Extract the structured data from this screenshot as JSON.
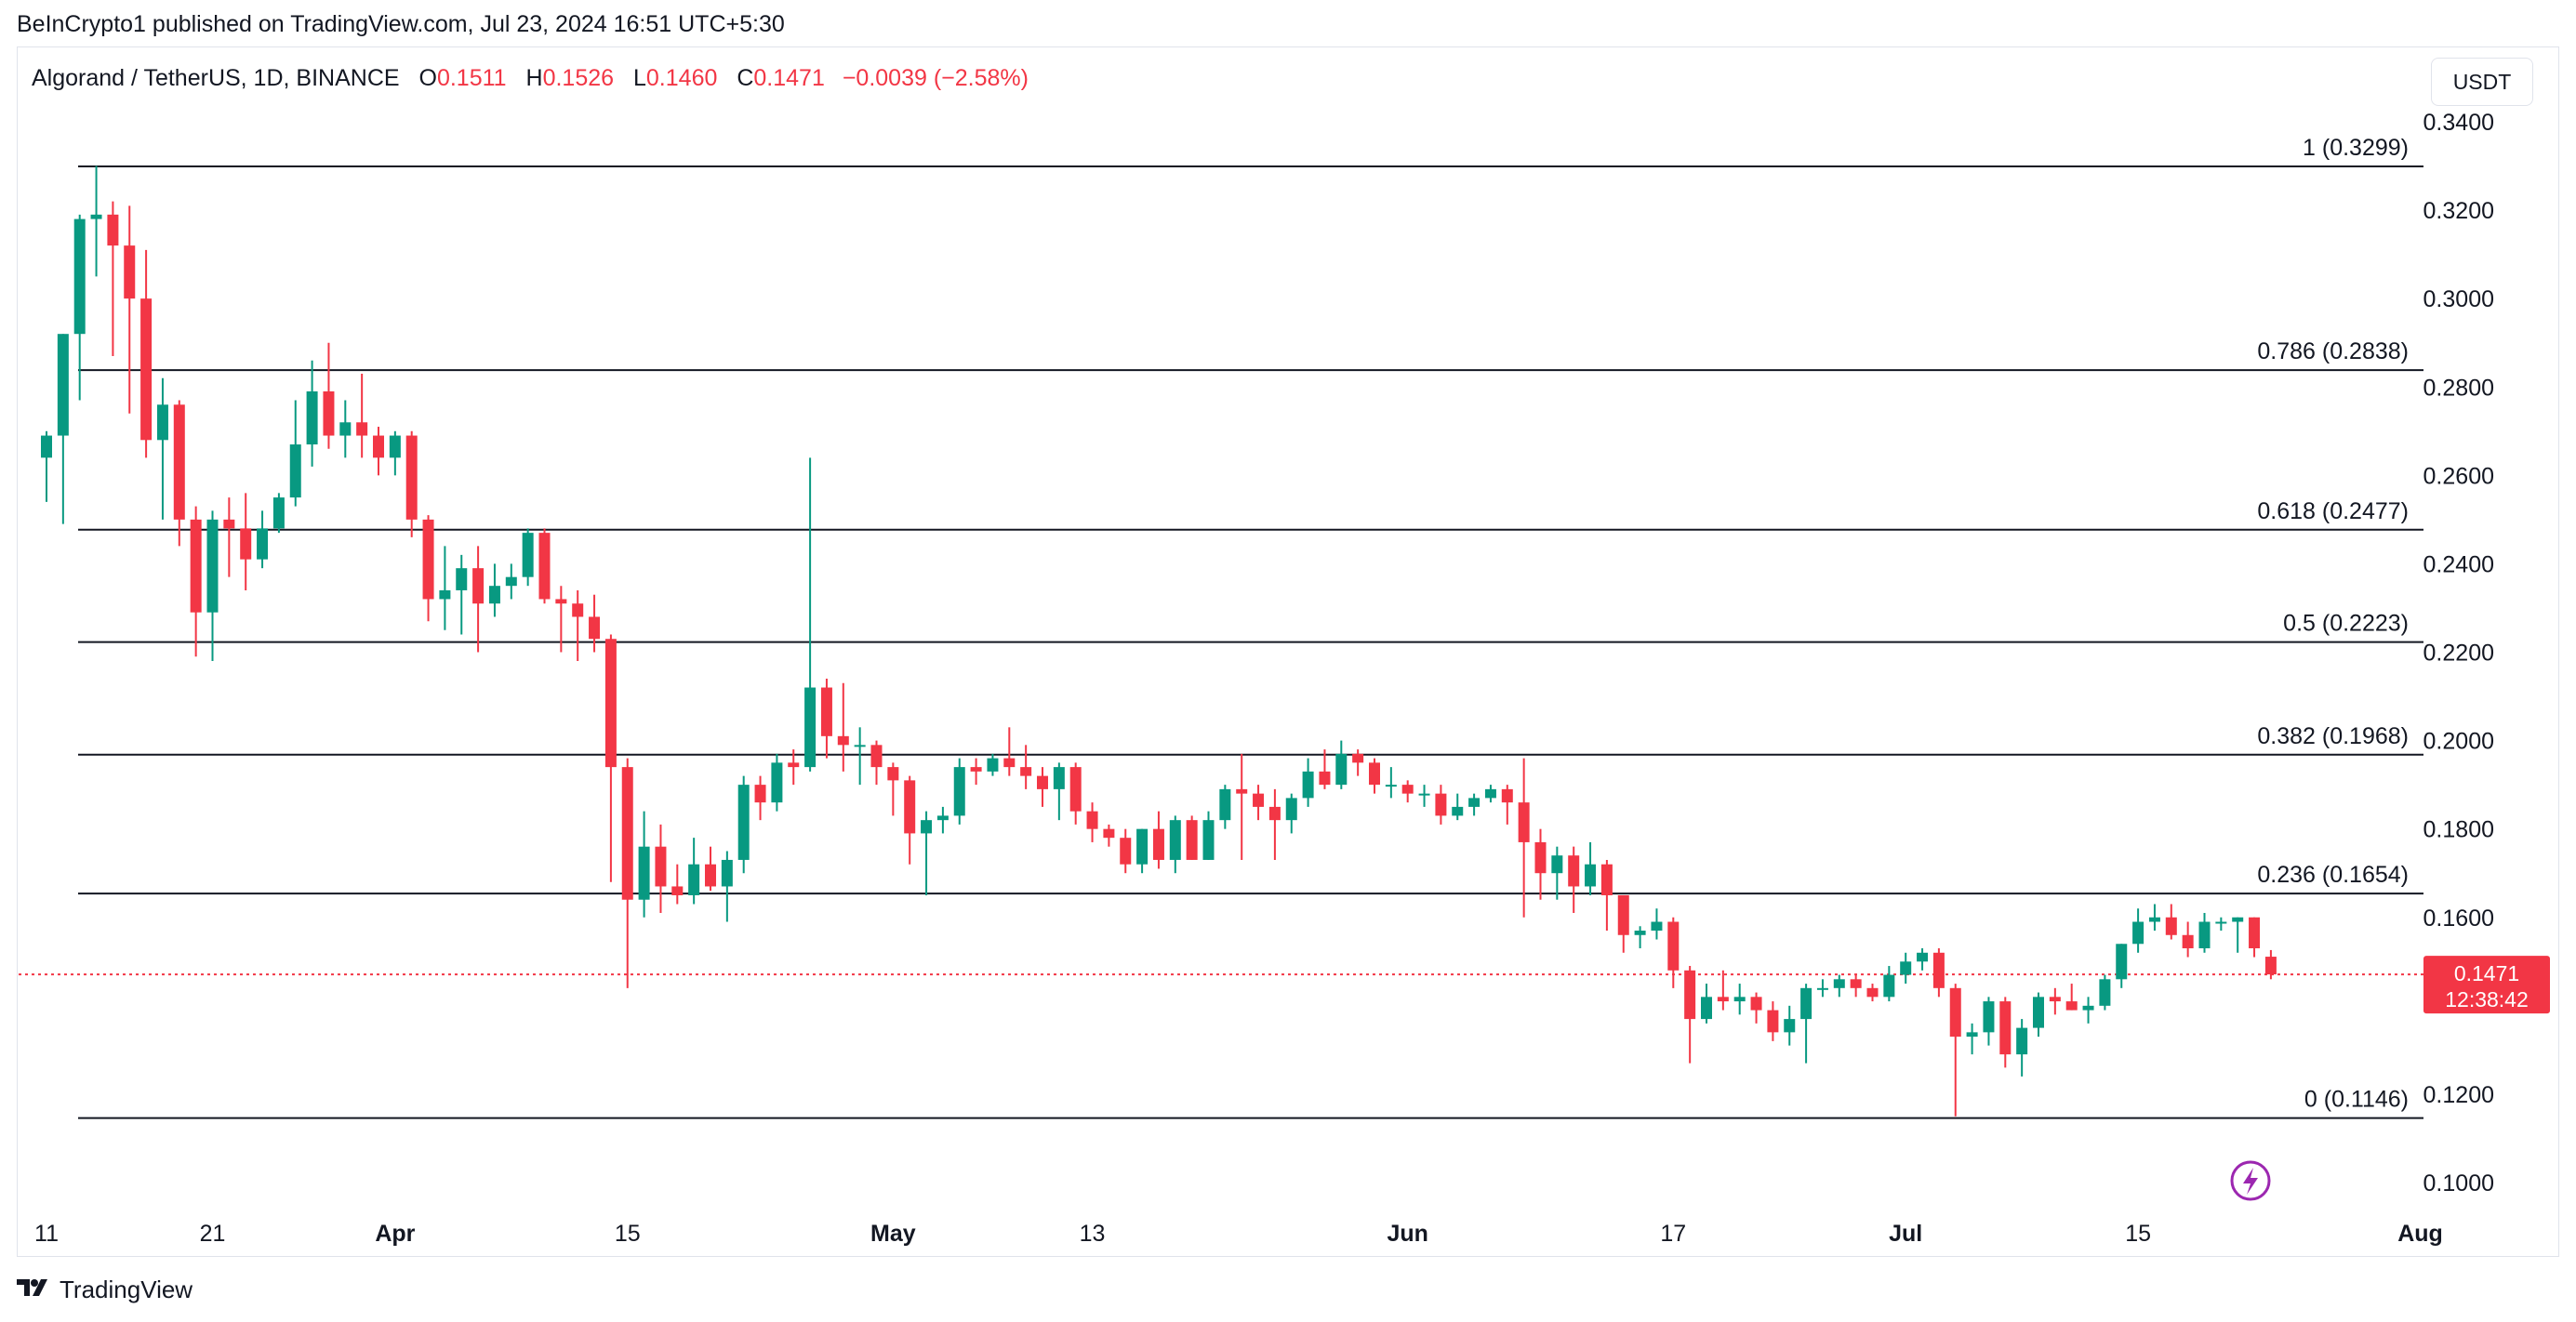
{
  "header": {
    "publisher_line": "BeInCrypto1 published on TradingView.com, Jul 23, 2024 16:51 UTC+5:30"
  },
  "legend": {
    "symbol": "Algorand / TetherUS, 1D, BINANCE",
    "o_label": "O",
    "o_value": "0.1511",
    "h_label": "H",
    "h_value": "0.1526",
    "l_label": "L",
    "l_value": "0.1460",
    "c_label": "C",
    "c_value": "0.1471",
    "change": "−0.0039 (−2.58%)"
  },
  "currency_button": {
    "label": "USDT"
  },
  "price_tag": {
    "value": "0.1471",
    "countdown": "12:38:42"
  },
  "footer": {
    "brand": "TradingView",
    "logo_icon": "tradingview-logo-icon"
  },
  "colors": {
    "up": "#089981",
    "down": "#f23645",
    "fib_line": "#131722",
    "accent": "#9c27b0"
  },
  "icons": {
    "lightning": "lightning-icon"
  },
  "chart_data": {
    "type": "candlestick",
    "title": "Algorand / TetherUS, 1D, BINANCE",
    "ylabel": "USDT",
    "ylim": [
      0.09,
      0.345
    ],
    "y_ticks": [
      "0.3400",
      "0.3200",
      "0.3000",
      "0.2800",
      "0.2600",
      "0.2400",
      "0.2200",
      "0.2000",
      "0.1800",
      "0.1600",
      "0.1200",
      "0.1000"
    ],
    "x_ticks": [
      {
        "label": "11",
        "day": 0,
        "bold": false
      },
      {
        "label": "21",
        "day": 10,
        "bold": false
      },
      {
        "label": "Apr",
        "day": 21,
        "bold": true
      },
      {
        "label": "15",
        "day": 35,
        "bold": false
      },
      {
        "label": "May",
        "day": 51,
        "bold": true
      },
      {
        "label": "13",
        "day": 63,
        "bold": false
      },
      {
        "label": "Jun",
        "day": 82,
        "bold": true
      },
      {
        "label": "17",
        "day": 98,
        "bold": false
      },
      {
        "label": "Jul",
        "day": 112,
        "bold": true
      },
      {
        "label": "15",
        "day": 126,
        "bold": false
      },
      {
        "label": "Aug",
        "day": 143,
        "bold": true
      }
    ],
    "fib_levels": [
      {
        "label": "1 (0.3299)",
        "value": 0.3299
      },
      {
        "label": "0.786 (0.2838)",
        "value": 0.2838
      },
      {
        "label": "0.618 (0.2477)",
        "value": 0.2477
      },
      {
        "label": "0.5 (0.2223)",
        "value": 0.2223
      },
      {
        "label": "0.382 (0.1968)",
        "value": 0.1968
      },
      {
        "label": "0.236 (0.1654)",
        "value": 0.1654
      },
      {
        "label": "0 (0.1146)",
        "value": 0.1146
      }
    ],
    "last_price": 0.1471,
    "candles": [
      [
        0.264,
        0.27,
        0.254,
        0.269
      ],
      [
        0.269,
        0.292,
        0.249,
        0.292
      ],
      [
        0.292,
        0.319,
        0.277,
        0.318
      ],
      [
        0.318,
        0.33,
        0.305,
        0.319
      ],
      [
        0.319,
        0.322,
        0.287,
        0.312
      ],
      [
        0.312,
        0.321,
        0.274,
        0.3
      ],
      [
        0.3,
        0.311,
        0.264,
        0.268
      ],
      [
        0.268,
        0.282,
        0.25,
        0.276
      ],
      [
        0.276,
        0.277,
        0.244,
        0.25
      ],
      [
        0.25,
        0.253,
        0.219,
        0.229
      ],
      [
        0.229,
        0.252,
        0.218,
        0.25
      ],
      [
        0.25,
        0.255,
        0.237,
        0.248
      ],
      [
        0.248,
        0.256,
        0.234,
        0.241
      ],
      [
        0.241,
        0.252,
        0.239,
        0.248
      ],
      [
        0.248,
        0.256,
        0.247,
        0.255
      ],
      [
        0.255,
        0.277,
        0.253,
        0.267
      ],
      [
        0.267,
        0.286,
        0.262,
        0.279
      ],
      [
        0.279,
        0.29,
        0.266,
        0.269
      ],
      [
        0.269,
        0.277,
        0.264,
        0.272
      ],
      [
        0.272,
        0.283,
        0.264,
        0.269
      ],
      [
        0.269,
        0.271,
        0.26,
        0.264
      ],
      [
        0.264,
        0.27,
        0.26,
        0.269
      ],
      [
        0.269,
        0.27,
        0.246,
        0.25
      ],
      [
        0.25,
        0.251,
        0.227,
        0.232
      ],
      [
        0.232,
        0.244,
        0.225,
        0.234
      ],
      [
        0.234,
        0.242,
        0.224,
        0.239
      ],
      [
        0.239,
        0.244,
        0.22,
        0.231
      ],
      [
        0.231,
        0.24,
        0.228,
        0.235
      ],
      [
        0.235,
        0.24,
        0.232,
        0.237
      ],
      [
        0.237,
        0.248,
        0.235,
        0.247
      ],
      [
        0.247,
        0.248,
        0.231,
        0.232
      ],
      [
        0.232,
        0.235,
        0.22,
        0.231
      ],
      [
        0.231,
        0.234,
        0.218,
        0.228
      ],
      [
        0.228,
        0.233,
        0.22,
        0.223
      ],
      [
        0.223,
        0.224,
        0.168,
        0.194
      ],
      [
        0.194,
        0.196,
        0.144,
        0.164
      ],
      [
        0.164,
        0.184,
        0.16,
        0.176
      ],
      [
        0.176,
        0.181,
        0.161,
        0.167
      ],
      [
        0.167,
        0.172,
        0.163,
        0.165
      ],
      [
        0.165,
        0.178,
        0.163,
        0.172
      ],
      [
        0.172,
        0.176,
        0.166,
        0.167
      ],
      [
        0.167,
        0.175,
        0.159,
        0.173
      ],
      [
        0.173,
        0.192,
        0.17,
        0.19
      ],
      [
        0.19,
        0.192,
        0.182,
        0.186
      ],
      [
        0.186,
        0.197,
        0.184,
        0.195
      ],
      [
        0.195,
        0.198,
        0.19,
        0.194
      ],
      [
        0.194,
        0.264,
        0.193,
        0.212
      ],
      [
        0.212,
        0.214,
        0.196,
        0.201
      ],
      [
        0.201,
        0.213,
        0.193,
        0.199
      ],
      [
        0.199,
        0.203,
        0.19,
        0.199
      ],
      [
        0.199,
        0.2,
        0.19,
        0.194
      ],
      [
        0.194,
        0.195,
        0.183,
        0.191
      ],
      [
        0.191,
        0.192,
        0.172,
        0.179
      ],
      [
        0.179,
        0.184,
        0.165,
        0.182
      ],
      [
        0.182,
        0.185,
        0.179,
        0.183
      ],
      [
        0.183,
        0.196,
        0.181,
        0.194
      ],
      [
        0.194,
        0.196,
        0.19,
        0.193
      ],
      [
        0.193,
        0.197,
        0.192,
        0.196
      ],
      [
        0.196,
        0.203,
        0.192,
        0.194
      ],
      [
        0.194,
        0.199,
        0.189,
        0.192
      ],
      [
        0.192,
        0.194,
        0.185,
        0.189
      ],
      [
        0.189,
        0.195,
        0.182,
        0.194
      ],
      [
        0.194,
        0.195,
        0.181,
        0.184
      ],
      [
        0.184,
        0.186,
        0.177,
        0.18
      ],
      [
        0.18,
        0.181,
        0.176,
        0.178
      ],
      [
        0.178,
        0.18,
        0.17,
        0.172
      ],
      [
        0.172,
        0.18,
        0.17,
        0.18
      ],
      [
        0.18,
        0.184,
        0.171,
        0.173
      ],
      [
        0.173,
        0.183,
        0.17,
        0.182
      ],
      [
        0.182,
        0.183,
        0.173,
        0.173
      ],
      [
        0.173,
        0.184,
        0.173,
        0.182
      ],
      [
        0.182,
        0.19,
        0.18,
        0.189
      ],
      [
        0.189,
        0.197,
        0.173,
        0.188
      ],
      [
        0.188,
        0.19,
        0.182,
        0.185
      ],
      [
        0.185,
        0.189,
        0.173,
        0.182
      ],
      [
        0.182,
        0.188,
        0.179,
        0.187
      ],
      [
        0.187,
        0.196,
        0.185,
        0.193
      ],
      [
        0.193,
        0.198,
        0.189,
        0.19
      ],
      [
        0.19,
        0.2,
        0.189,
        0.197
      ],
      [
        0.197,
        0.198,
        0.192,
        0.195
      ],
      [
        0.195,
        0.196,
        0.188,
        0.19
      ],
      [
        0.19,
        0.194,
        0.187,
        0.19
      ],
      [
        0.19,
        0.191,
        0.186,
        0.188
      ],
      [
        0.188,
        0.19,
        0.185,
        0.188
      ],
      [
        0.188,
        0.19,
        0.181,
        0.183
      ],
      [
        0.183,
        0.188,
        0.182,
        0.185
      ],
      [
        0.185,
        0.188,
        0.183,
        0.187
      ],
      [
        0.187,
        0.19,
        0.186,
        0.189
      ],
      [
        0.189,
        0.19,
        0.181,
        0.186
      ],
      [
        0.186,
        0.196,
        0.16,
        0.177
      ],
      [
        0.177,
        0.18,
        0.164,
        0.17
      ],
      [
        0.17,
        0.176,
        0.164,
        0.174
      ],
      [
        0.174,
        0.176,
        0.161,
        0.167
      ],
      [
        0.167,
        0.177,
        0.165,
        0.172
      ],
      [
        0.172,
        0.173,
        0.157,
        0.165
      ],
      [
        0.165,
        0.165,
        0.152,
        0.156
      ],
      [
        0.156,
        0.158,
        0.153,
        0.157
      ],
      [
        0.157,
        0.162,
        0.155,
        0.159
      ],
      [
        0.159,
        0.16,
        0.144,
        0.148
      ],
      [
        0.148,
        0.149,
        0.127,
        0.137
      ],
      [
        0.137,
        0.145,
        0.136,
        0.142
      ],
      [
        0.142,
        0.148,
        0.139,
        0.141
      ],
      [
        0.141,
        0.145,
        0.138,
        0.142
      ],
      [
        0.142,
        0.143,
        0.136,
        0.139
      ],
      [
        0.139,
        0.141,
        0.132,
        0.134
      ],
      [
        0.134,
        0.14,
        0.131,
        0.137
      ],
      [
        0.137,
        0.145,
        0.127,
        0.144
      ],
      [
        0.144,
        0.146,
        0.142,
        0.144
      ],
      [
        0.144,
        0.147,
        0.142,
        0.146
      ],
      [
        0.146,
        0.147,
        0.142,
        0.144
      ],
      [
        0.144,
        0.145,
        0.141,
        0.142
      ],
      [
        0.142,
        0.149,
        0.141,
        0.147
      ],
      [
        0.147,
        0.152,
        0.145,
        0.15
      ],
      [
        0.15,
        0.153,
        0.148,
        0.152
      ],
      [
        0.152,
        0.153,
        0.142,
        0.144
      ],
      [
        0.144,
        0.145,
        0.115,
        0.133
      ],
      [
        0.133,
        0.136,
        0.129,
        0.134
      ],
      [
        0.134,
        0.142,
        0.131,
        0.141
      ],
      [
        0.141,
        0.142,
        0.126,
        0.129
      ],
      [
        0.129,
        0.137,
        0.124,
        0.135
      ],
      [
        0.135,
        0.143,
        0.133,
        0.142
      ],
      [
        0.142,
        0.144,
        0.138,
        0.141
      ],
      [
        0.141,
        0.145,
        0.139,
        0.139
      ],
      [
        0.139,
        0.142,
        0.136,
        0.14
      ],
      [
        0.14,
        0.147,
        0.139,
        0.146
      ],
      [
        0.146,
        0.154,
        0.144,
        0.154
      ],
      [
        0.154,
        0.162,
        0.152,
        0.159
      ],
      [
        0.159,
        0.163,
        0.157,
        0.16
      ],
      [
        0.16,
        0.163,
        0.155,
        0.156
      ],
      [
        0.156,
        0.159,
        0.151,
        0.153
      ],
      [
        0.153,
        0.161,
        0.152,
        0.159
      ],
      [
        0.159,
        0.16,
        0.157,
        0.159
      ],
      [
        0.159,
        0.16,
        0.152,
        0.16
      ],
      [
        0.16,
        0.16,
        0.151,
        0.153
      ],
      [
        0.1511,
        0.1526,
        0.146,
        0.1471
      ]
    ]
  }
}
